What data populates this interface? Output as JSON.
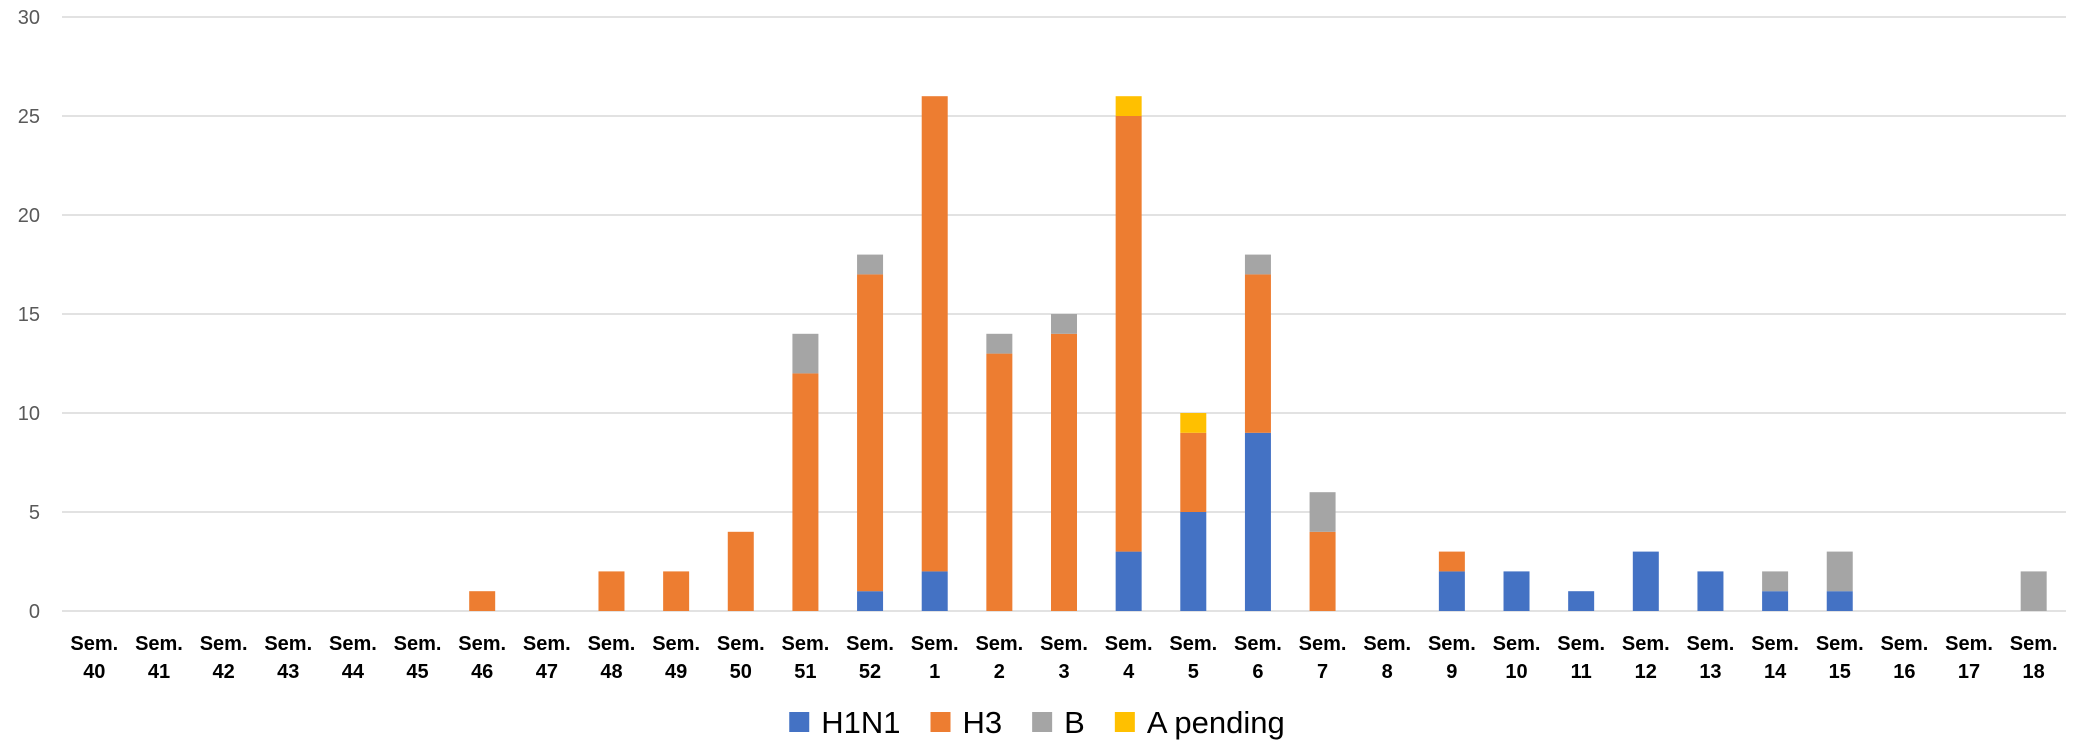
{
  "chart_data": {
    "type": "bar",
    "stacked": true,
    "categories": [
      "Sem. 40",
      "Sem. 41",
      "Sem. 42",
      "Sem. 43",
      "Sem. 44",
      "Sem. 45",
      "Sem. 46",
      "Sem. 47",
      "Sem. 48",
      "Sem. 49",
      "Sem. 50",
      "Sem. 51",
      "Sem. 52",
      "Sem. 1",
      "Sem. 2",
      "Sem. 3",
      "Sem. 4",
      "Sem. 5",
      "Sem. 6",
      "Sem. 7",
      "Sem. 8",
      "Sem. 9",
      "Sem. 10",
      "Sem. 11",
      "Sem. 12",
      "Sem. 13",
      "Sem. 14",
      "Sem. 15",
      "Sem. 16",
      "Sem. 17",
      "Sem. 18"
    ],
    "series": [
      {
        "name": "H1N1",
        "color": "#4472C4",
        "values": [
          0,
          0,
          0,
          0,
          0,
          0,
          0,
          0,
          0,
          0,
          0,
          0,
          1,
          2,
          0,
          0,
          3,
          5,
          9,
          0,
          0,
          2,
          2,
          1,
          3,
          2,
          1,
          1,
          0,
          0,
          0
        ]
      },
      {
        "name": "H3",
        "color": "#ED7D31",
        "values": [
          0,
          0,
          0,
          0,
          0,
          0,
          1,
          0,
          2,
          2,
          4,
          12,
          16,
          24,
          13,
          14,
          22,
          4,
          8,
          4,
          0,
          1,
          0,
          0,
          0,
          0,
          0,
          0,
          0,
          0,
          0
        ]
      },
      {
        "name": "B",
        "color": "#A5A5A5",
        "values": [
          0,
          0,
          0,
          0,
          0,
          0,
          0,
          0,
          0,
          0,
          0,
          2,
          1,
          0,
          1,
          1,
          0,
          0,
          1,
          2,
          0,
          0,
          0,
          0,
          0,
          0,
          1,
          2,
          0,
          0,
          2
        ]
      },
      {
        "name": "A pending",
        "color": "#FFC000",
        "values": [
          0,
          0,
          0,
          0,
          0,
          0,
          0,
          0,
          0,
          0,
          0,
          0,
          0,
          0,
          0,
          0,
          1,
          1,
          0,
          0,
          0,
          0,
          0,
          0,
          0,
          0,
          0,
          0,
          0,
          0,
          0
        ]
      }
    ],
    "ylim": [
      0,
      30
    ],
    "yticks": [
      0,
      5,
      10,
      15,
      20,
      25,
      30
    ],
    "title": "",
    "xlabel": "",
    "ylabel": "",
    "grid": true,
    "legend_position": "bottom"
  }
}
